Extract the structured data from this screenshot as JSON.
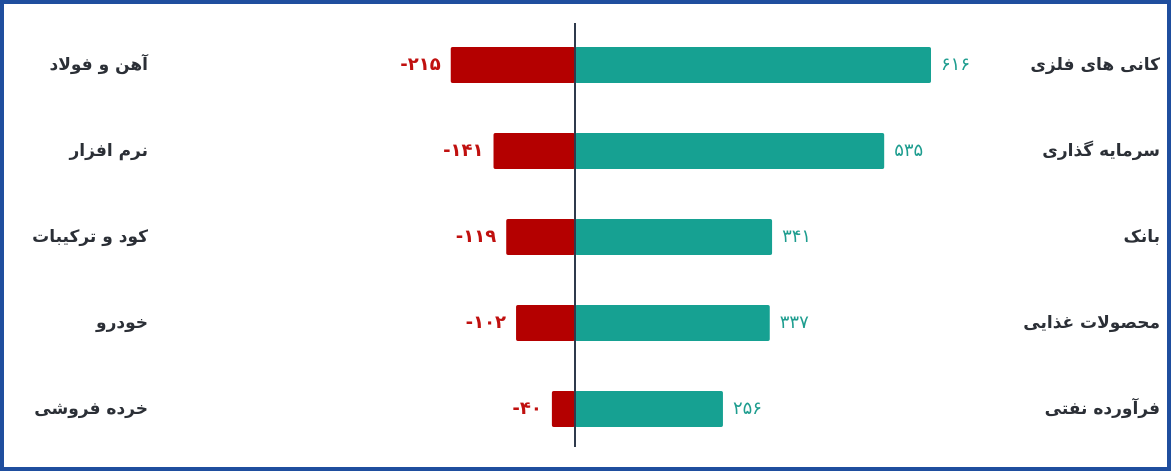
{
  "chart_data": {
    "type": "bar",
    "orientation": "horizontal-diverging",
    "title": "",
    "xlabel": "",
    "ylabel": "",
    "xlim": [
      -215,
      616
    ],
    "grid": false,
    "legend": "none",
    "positive": {
      "categories": [
        "کانی های فلزی",
        "سرمایه گذاری",
        "بانک",
        "محصولات غذایی",
        "فرآورده نفتی"
      ],
      "values": [
        616,
        535,
        341,
        337,
        256
      ],
      "value_labels": [
        "۶۱۶",
        "۵۳۵",
        "۳۴۱",
        "۳۳۷",
        "۲۵۶"
      ],
      "color": "#16a192",
      "label_color": "#1e9d8f"
    },
    "negative": {
      "categories": [
        "آهن و فولاد",
        "نرم افزار",
        "کود و ترکیبات",
        "خودرو",
        "خرده فروشی"
      ],
      "values": [
        -215,
        -141,
        -119,
        -102,
        -40
      ],
      "value_labels": [
        "-۲۱۵",
        "-۱۴۱",
        "-۱۱۹",
        "-۱۰۲",
        "-۴۰"
      ],
      "color": "#b40000",
      "label_color": "#c0100f"
    },
    "axis_color": "#2f3a4c",
    "frame_color": "#1f4e9e"
  }
}
